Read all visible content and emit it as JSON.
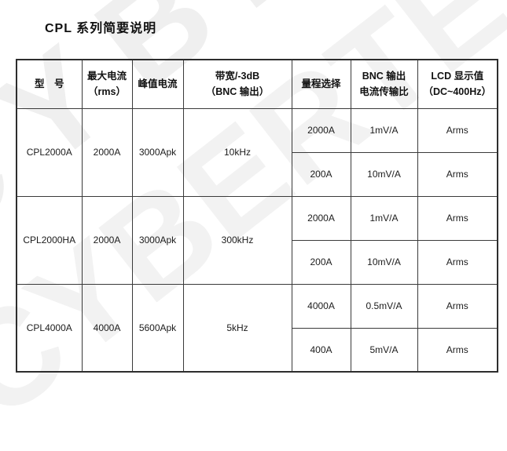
{
  "page": {
    "title": "CPL 系列简要说明",
    "watermark_text": "CYBERTEK",
    "watermark_color": "#efefef",
    "line_color": "#3a3a3a",
    "text_color": "#1c1c1c"
  },
  "table": {
    "headers": [
      {
        "line1": "型　号",
        "line2": ""
      },
      {
        "line1": "最大电流",
        "line2": "（rms）"
      },
      {
        "line1": "峰值电流",
        "line2": ""
      },
      {
        "line1": "带宽/-3dB",
        "line2": "（BNC 输出）"
      },
      {
        "line1": "量程选择",
        "line2": ""
      },
      {
        "line1": "BNC 输出",
        "line2": "电流传输比"
      },
      {
        "line1": "LCD 显示值",
        "line2": "（DC~400Hz）"
      }
    ],
    "groups": [
      {
        "model": "CPL2000A",
        "max_current": "2000A",
        "peak_current": "3000Apk",
        "bandwidth": "10kHz",
        "ranges": [
          {
            "range": "2000A",
            "ratio": "1mV/A",
            "display": "Arms"
          },
          {
            "range": "200A",
            "ratio": "10mV/A",
            "display": "Arms"
          }
        ]
      },
      {
        "model": "CPL2000HA",
        "max_current": "2000A",
        "peak_current": "3000Apk",
        "bandwidth": "300kHz",
        "ranges": [
          {
            "range": "2000A",
            "ratio": "1mV/A",
            "display": "Arms"
          },
          {
            "range": "200A",
            "ratio": "10mV/A",
            "display": "Arms"
          }
        ]
      },
      {
        "model": "CPL4000A",
        "max_current": "4000A",
        "peak_current": "5600Apk",
        "bandwidth": "5kHz",
        "ranges": [
          {
            "range": "4000A",
            "ratio": "0.5mV/A",
            "display": "Arms"
          },
          {
            "range": "400A",
            "ratio": "5mV/A",
            "display": "Arms"
          }
        ]
      }
    ]
  }
}
